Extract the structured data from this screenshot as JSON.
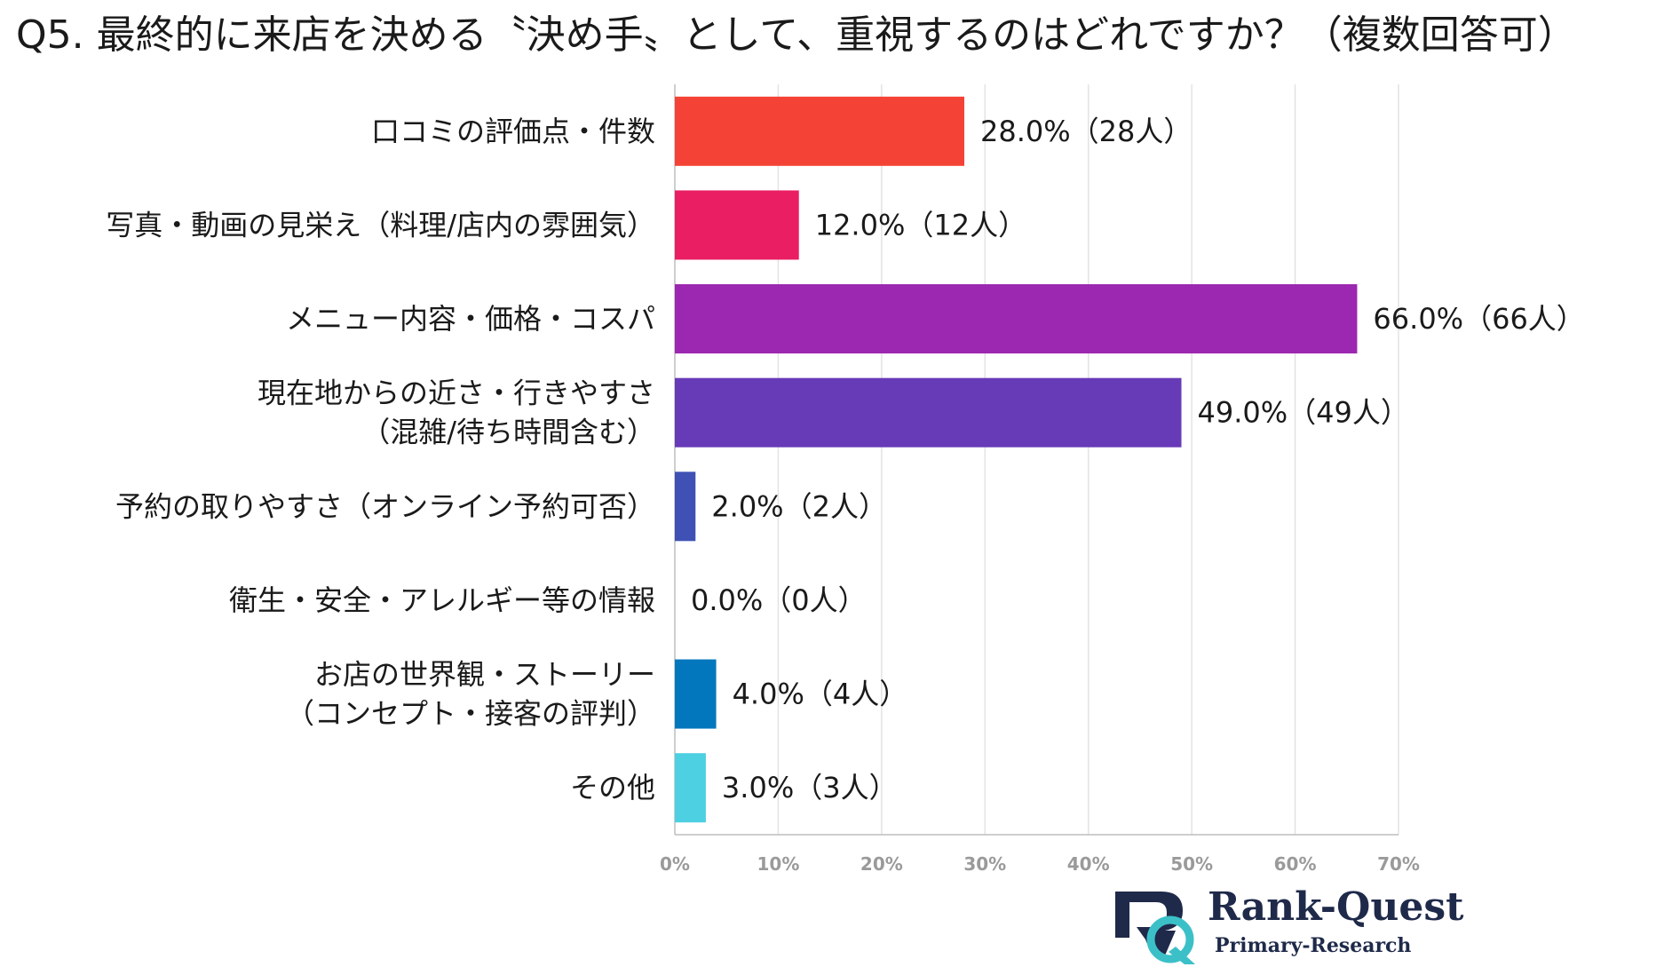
{
  "chart_data": {
    "type": "bar",
    "orientation": "horizontal",
    "title": "Q5. 最終的に来店を決める〝決め手〟として、重視するのはどれですか？（複数回答可）",
    "categories": [
      [
        "口コミの評価点・件数"
      ],
      [
        "写真・動画の見栄え（料理/店内の雰囲気）"
      ],
      [
        "メニュー内容・価格・コスパ"
      ],
      [
        "現在地からの近さ・行きやすさ",
        "（混雑/待ち時間含む）"
      ],
      [
        "予約の取りやすさ（オンライン予約可否）"
      ],
      [
        "衛生・安全・アレルギー等の情報"
      ],
      [
        "お店の世界観・ストーリー",
        "（コンセプト・接客の評判）"
      ],
      [
        "その他"
      ]
    ],
    "values": [
      28.0,
      12.0,
      66.0,
      49.0,
      2.0,
      0.0,
      4.0,
      3.0
    ],
    "value_labels": [
      "28.0%（28人）",
      "12.0%（12人）",
      "66.0%（66人）",
      "49.0%（49人）",
      "2.0%（2人）",
      "0.0%（0人）",
      "4.0%（4人）",
      "3.0%（3人）"
    ],
    "colors": [
      "#f44336",
      "#e91e63",
      "#9c27b0",
      "#673ab7",
      "#3f51b5",
      "#2196f3",
      "#0277bd",
      "#4dd0e1"
    ],
    "xlim": [
      0,
      70
    ],
    "x_ticks": [
      0,
      10,
      20,
      30,
      40,
      50,
      60,
      70
    ],
    "x_tick_labels": [
      "0%",
      "10%",
      "20%",
      "30%",
      "40%",
      "50%",
      "60%",
      "70%"
    ],
    "grid": true,
    "xlabel": "",
    "ylabel": ""
  },
  "logo": {
    "name": "Rank-Quest",
    "subtitle": "Primary-Research",
    "colors": {
      "navy": "#1f2a4a",
      "teal": "#3cc0c8"
    }
  }
}
